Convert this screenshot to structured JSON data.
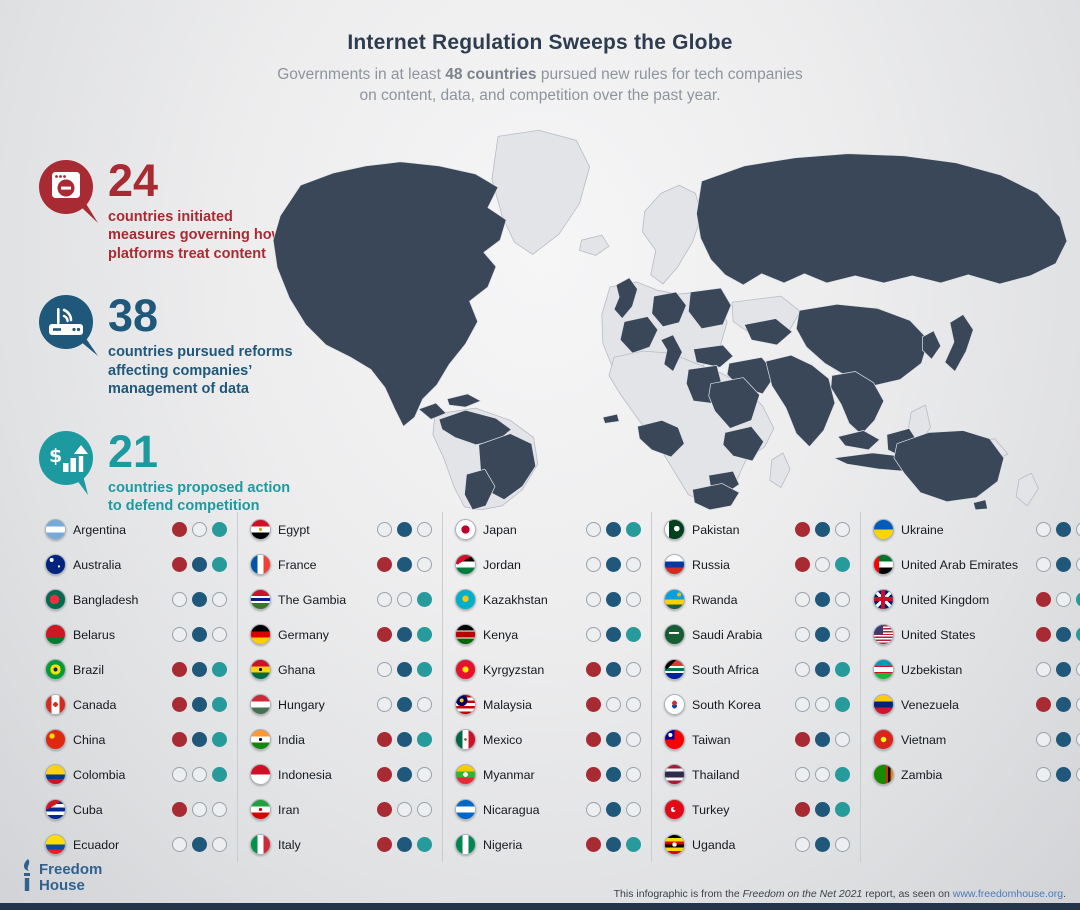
{
  "header": {
    "title": "Internet Regulation Sweeps the Globe",
    "subtitle_prefix": "Governments in at least ",
    "subtitle_bold": "48 countries",
    "subtitle_suffix": " pursued new rules for tech companies",
    "subtitle_line2": "on content, data, and competition over the past year."
  },
  "stats": [
    {
      "value": "24",
      "label": "countries initiated measures governing how platforms treat content",
      "color": "#a82b33",
      "icon": "content-moderation-icon"
    },
    {
      "value": "38",
      "label": "countries pursued reforms affecting companies’ management of data",
      "color": "#1f587a",
      "icon": "data-router-icon"
    },
    {
      "value": "21",
      "label": "countries proposed action to defend competition",
      "color": "#1d9aa0",
      "icon": "competition-growth-icon"
    }
  ],
  "dot_colors": [
    "#a82b33",
    "#1f587a",
    "#279a9c"
  ],
  "dot_names": [
    "content",
    "data",
    "competition"
  ],
  "map": {
    "highlight_color": "#394759",
    "base_color": "#e2e4e8"
  },
  "grid": {
    "column_sizes": [
      10,
      10,
      10,
      10,
      8
    ]
  },
  "countries": [
    {
      "name": "Argentina",
      "dots": [
        1,
        0,
        1
      ],
      "flag": "linear-gradient(180deg,#75aadb 34%,#fff 34% 66%,#75aadb 66%)"
    },
    {
      "name": "Australia",
      "dots": [
        1,
        1,
        1
      ],
      "flag": "radial-gradient(circle at 30% 26%,#fff 10%,transparent 11%), radial-gradient(circle at 68% 60%,#fff 6%,transparent 7%), linear-gradient(#00247d,#00247d)"
    },
    {
      "name": "Bangladesh",
      "dots": [
        0,
        1,
        0
      ],
      "flag": "radial-gradient(circle at 45% 50%,#f42a41 33%,transparent 34%), linear-gradient(#006a4e,#006a4e)"
    },
    {
      "name": "Belarus",
      "dots": [
        0,
        1,
        0
      ],
      "flag": "linear-gradient(180deg,#ce1720 66%,#007c30 66%)"
    },
    {
      "name": "Brazil",
      "dots": [
        1,
        1,
        1
      ],
      "flag": "radial-gradient(circle at 50% 50%,#002776 15%,#fedf00 16% 38%,transparent 39%), linear-gradient(#009b3a,#009b3a)"
    },
    {
      "name": "Canada",
      "dots": [
        1,
        1,
        1
      ],
      "flag": "radial-gradient(circle at 50% 50%,#d52b1e 17%,transparent 18%), linear-gradient(90deg,#d52b1e 28%,#fff 28% 72%,#d52b1e 72%)"
    },
    {
      "name": "China",
      "dots": [
        1,
        1,
        1
      ],
      "flag": "radial-gradient(circle at 32% 32%,#ffde00 14%,transparent 15%), linear-gradient(#de2910,#de2910)"
    },
    {
      "name": "Colombia",
      "dots": [
        0,
        0,
        1
      ],
      "flag": "linear-gradient(180deg,#fcd116 50%,#003893 50% 75%,#ce1126 75%)"
    },
    {
      "name": "Cuba",
      "dots": [
        1,
        0,
        0
      ],
      "flag": "conic-gradient(from 300deg at 6% 50%,#cf142b 0 120deg,transparent 120deg), linear-gradient(180deg,#002a8f 20%,#fff 20% 40%,#002a8f 40% 60%,#fff 60% 80%,#002a8f 80%)"
    },
    {
      "name": "Ecuador",
      "dots": [
        0,
        1,
        0
      ],
      "flag": "linear-gradient(180deg,#ffdd00 50%,#034ea2 50% 75%,#ed1c24 75%)"
    },
    {
      "name": "Egypt",
      "dots": [
        0,
        1,
        0
      ],
      "flag": "radial-gradient(circle at 50% 50%,#c9a227 11%,transparent 12%), linear-gradient(180deg,#ce1126 34%,#fff 34% 66%,#000 66%)"
    },
    {
      "name": "France",
      "dots": [
        1,
        1,
        0
      ],
      "flag": "linear-gradient(90deg,#0055a4 34%,#fff 34% 66%,#ef4135 66%)"
    },
    {
      "name": "The Gambia",
      "dots": [
        0,
        0,
        1
      ],
      "flag": "linear-gradient(180deg,#ce1126 32%,#fff 32% 42%,#0c1c8c 42% 58%,#fff 58% 68%,#3a7728 68%)"
    },
    {
      "name": "Germany",
      "dots": [
        1,
        1,
        1
      ],
      "flag": "linear-gradient(180deg,#000 34%,#dd0000 34% 66%,#ffce00 66%)"
    },
    {
      "name": "Ghana",
      "dots": [
        0,
        1,
        1
      ],
      "flag": "radial-gradient(circle at 50% 50%,#000 12%,transparent 13%), linear-gradient(180deg,#ce1126 34%,#fcd116 34% 66%,#006b3f 66%)"
    },
    {
      "name": "Hungary",
      "dots": [
        0,
        1,
        0
      ],
      "flag": "linear-gradient(180deg,#ce2939 34%,#fff 34% 66%,#477050 66%)"
    },
    {
      "name": "India",
      "dots": [
        1,
        1,
        1
      ],
      "flag": "radial-gradient(circle at 50% 50%,#000080 11%,transparent 12%), linear-gradient(180deg,#ff9933 34%,#fff 34% 66%,#138808 66%)"
    },
    {
      "name": "Indonesia",
      "dots": [
        1,
        1,
        0
      ],
      "flag": "linear-gradient(180deg,#ce1126 50%,#fff 50%)"
    },
    {
      "name": "Iran",
      "dots": [
        1,
        0,
        0
      ],
      "flag": "radial-gradient(circle at 50% 50%,#da0000 11%,transparent 12%), linear-gradient(180deg,#239f40 34%,#fff 34% 66%,#da0000 66%)"
    },
    {
      "name": "Italy",
      "dots": [
        1,
        1,
        1
      ],
      "flag": "linear-gradient(90deg,#009246 34%,#fff 34% 66%,#ce2b37 66%)"
    },
    {
      "name": "Japan",
      "dots": [
        0,
        1,
        1
      ],
      "flag": "radial-gradient(circle at 50% 50%,#bc002d 30%,transparent 31%), linear-gradient(#fff,#fff)"
    },
    {
      "name": "Jordan",
      "dots": [
        0,
        1,
        0
      ],
      "flag": "conic-gradient(from 300deg at 8% 50%,#ce1126 0 120deg,transparent 120deg), linear-gradient(180deg,#000 34%,#fff 34% 66%,#007a3d 66%)"
    },
    {
      "name": "Kazakhstan",
      "dots": [
        0,
        1,
        0
      ],
      "flag": "radial-gradient(circle at 50% 46%,#fec50c 22%,transparent 23%), linear-gradient(#00afca,#00afca)"
    },
    {
      "name": "Kenya",
      "dots": [
        0,
        1,
        1
      ],
      "flag": "linear-gradient(180deg,#000 28%,#fff 28% 34%,#bb0000 34% 66%,#fff 66% 72%,#006600 72%)"
    },
    {
      "name": "Kyrgyzstan",
      "dots": [
        1,
        1,
        0
      ],
      "flag": "radial-gradient(circle at 50% 50%,#ffec00 22%,transparent 23%), linear-gradient(#e8112d,#e8112d)"
    },
    {
      "name": "Malaysia",
      "dots": [
        1,
        0,
        0
      ],
      "flag": "radial-gradient(circle at 30% 28%,#ffcc00 10%,#010066 11% 30%,transparent 31%), repeating-linear-gradient(180deg,#cc0001 0 14.3%,#fff 14.3% 28.6%)"
    },
    {
      "name": "Mexico",
      "dots": [
        1,
        1,
        0
      ],
      "flag": "radial-gradient(circle at 50% 50%,#8a6d3b 10%,transparent 11%), linear-gradient(90deg,#006847 34%,#fff 34% 66%,#ce1126 66%)"
    },
    {
      "name": "Myanmar",
      "dots": [
        1,
        1,
        0
      ],
      "flag": "radial-gradient(circle at 50% 50%,#fff 17%,transparent 18%), linear-gradient(180deg,#fecb00 34%,#34b233 34% 66%,#ea2839 66%)"
    },
    {
      "name": "Nicaragua",
      "dots": [
        0,
        1,
        0
      ],
      "flag": "linear-gradient(180deg,#0067c6 34%,#fff 34% 66%,#0067c6 66%)"
    },
    {
      "name": "Nigeria",
      "dots": [
        1,
        1,
        1
      ],
      "flag": "linear-gradient(90deg,#008751 34%,#fff 34% 66%,#008751 66%)"
    },
    {
      "name": "Pakistan",
      "dots": [
        1,
        1,
        0
      ],
      "flag": "radial-gradient(circle at 62% 45%,#fff 17%,transparent 18%), linear-gradient(90deg,#fff 22%,#01411c 22%)"
    },
    {
      "name": "Russia",
      "dots": [
        1,
        0,
        1
      ],
      "flag": "linear-gradient(180deg,#fff 34%,#0039a6 34% 66%,#d52b1e 66%)"
    },
    {
      "name": "Rwanda",
      "dots": [
        0,
        1,
        0
      ],
      "flag": "radial-gradient(circle at 74% 24%,#e5be01 10%,transparent 11%), linear-gradient(180deg,#00a1de 50%,#fad201 50% 75%,#20603d 75%)"
    },
    {
      "name": "Saudi Arabia",
      "dots": [
        0,
        1,
        0
      ],
      "flag": "linear-gradient(#fff,#fff) 50% 42%/55% 10% no-repeat, linear-gradient(#165d31,#165d31)"
    },
    {
      "name": "South Africa",
      "dots": [
        0,
        1,
        1
      ],
      "flag": "conic-gradient(from 315deg at 10% 50%,#000 0 90deg,transparent 90deg), linear-gradient(180deg,#de3831 32%,#fff 32% 42%,#007a4d 42% 58%,#fff 58% 68%,#002395 68%)"
    },
    {
      "name": "South Korea",
      "dots": [
        0,
        0,
        1
      ],
      "flag": "radial-gradient(circle at 50% 42%,#cd2e3a 16%,transparent 17%), radial-gradient(circle at 50% 58%,#0047a0 16%,transparent 17%), linear-gradient(#fff,#fff)"
    },
    {
      "name": "Taiwan",
      "dots": [
        1,
        1,
        0
      ],
      "flag": "radial-gradient(circle at 28% 26%,#fff 10%,transparent 11%), linear-gradient(to right,#000095 50%,transparent 50%) 0 0/100% 50% no-repeat, linear-gradient(#fe0000,#fe0000)"
    },
    {
      "name": "Thailand",
      "dots": [
        0,
        0,
        1
      ],
      "flag": "linear-gradient(180deg,#a51931 18%,#f4f5f8 18% 34%,#2d2a4a 34% 66%,#f4f5f8 66% 82%,#a51931 82%)"
    },
    {
      "name": "Turkey",
      "dots": [
        1,
        1,
        1
      ],
      "flag": "radial-gradient(circle at 52% 46%,#e30a17 11%,transparent 12%), radial-gradient(circle at 44% 50%,#fff 17%,transparent 18%), linear-gradient(#e30a17,#e30a17)"
    },
    {
      "name": "Uganda",
      "dots": [
        0,
        1,
        0
      ],
      "flag": "radial-gradient(circle at 50% 50%,#fff 16%,transparent 17%), repeating-linear-gradient(180deg,#000 0 16.6%,#fcdc04 16.6% 33.2%,#d90000 33.2% 50%)"
    },
    {
      "name": "Ukraine",
      "dots": [
        0,
        1,
        0
      ],
      "flag": "linear-gradient(180deg,#005bbb 50%,#ffd500 50%)"
    },
    {
      "name": "United Arab Emirates",
      "dots": [
        0,
        1,
        0
      ],
      "flag": "linear-gradient(90deg,#ff0000 26%,transparent 26%), linear-gradient(180deg,#00732f 34%,#fff 34% 66%,#000 66%)"
    },
    {
      "name": "United Kingdom",
      "dots": [
        1,
        0,
        1
      ],
      "flag": "linear-gradient(#c8102e,#c8102e) 50% 50%/100% 22% no-repeat, linear-gradient(#c8102e,#c8102e) 50% 50%/22% 100% no-repeat, linear-gradient(45deg,transparent 44%,#fff 44% 56%,transparent 56%), linear-gradient(-45deg,transparent 44%,#fff 44% 56%,transparent 56%), linear-gradient(#012169,#012169)"
    },
    {
      "name": "United States",
      "dots": [
        1,
        1,
        1
      ],
      "flag": "linear-gradient(#3c3b6e,#3c3b6e) 0 0/48% 50% no-repeat, repeating-linear-gradient(180deg,#b22234 0 7.7%,#fff 7.7% 15.4%)"
    },
    {
      "name": "Uzbekistan",
      "dots": [
        0,
        1,
        0
      ],
      "flag": "linear-gradient(180deg,#0099b5 32%,#ce1126 32% 36%,#fff 36% 64%,#ce1126 64% 68%,#1eb53a 68%)"
    },
    {
      "name": "Venezuela",
      "dots": [
        1,
        1,
        0
      ],
      "flag": "linear-gradient(180deg,#ffcc00 34%,#00247d 34% 66%,#cf142b 66%)"
    },
    {
      "name": "Vietnam",
      "dots": [
        0,
        1,
        0
      ],
      "flag": "radial-gradient(circle at 50% 50%,#ffff00 20%,transparent 21%), linear-gradient(#da251d,#da251d)"
    },
    {
      "name": "Zambia",
      "dots": [
        0,
        1,
        0
      ],
      "flag": "linear-gradient(90deg,#198a00 62%,#de2010 62% 75%,#000 75% 87%,#ef7d00 87%)"
    }
  ],
  "footer": {
    "logo_line1": "Freedom",
    "logo_line2": "House",
    "attribution_prefix": "This infographic is from the ",
    "attribution_report": "Freedom on the Net 2021",
    "attribution_middle": " report, as seen on ",
    "attribution_link": "www.freedomhouse.org",
    "attribution_suffix": "."
  }
}
